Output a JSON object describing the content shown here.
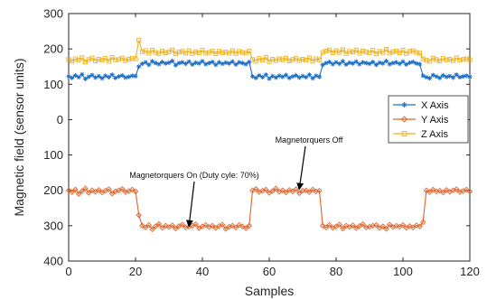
{
  "chart_data": {
    "type": "line",
    "xlabel": "Samples",
    "ylabel": "Magnetic field (sensor units)",
    "xlim": [
      0,
      120
    ],
    "ylim": [
      -400,
      300
    ],
    "x_ticks": [
      "0",
      "20",
      "40",
      "60",
      "80",
      "100",
      "120"
    ],
    "y_ticks": [
      {
        "value": 300,
        "label": "300"
      },
      {
        "value": 200,
        "label": "200"
      },
      {
        "value": 100,
        "label": "100"
      },
      {
        "value": 0,
        "label": "0"
      },
      {
        "value": -100,
        "label": "100"
      },
      {
        "value": -200,
        "label": "200"
      },
      {
        "value": -300,
        "label": "300"
      },
      {
        "value": -400,
        "label": "400"
      }
    ],
    "grid": false,
    "legend_position": "right",
    "series": [
      {
        "name": "X Axis",
        "color": "#1f6fc4",
        "marker": "star",
        "values": [
          122,
          118,
          125,
          120,
          128,
          115,
          121,
          126,
          119,
          123,
          117,
          124,
          120,
          127,
          118,
          122,
          125,
          119,
          121,
          124,
          123,
          150,
          158,
          162,
          155,
          165,
          160,
          157,
          163,
          159,
          161,
          166,
          154,
          160,
          162,
          158,
          164,
          156,
          161,
          159,
          165,
          157,
          160,
          163,
          155,
          162,
          158,
          161,
          159,
          164,
          156,
          162,
          160,
          157,
          163,
          122,
          118,
          125,
          120,
          127,
          116,
          123,
          119,
          124,
          121,
          126,
          118,
          122,
          125,
          119,
          123,
          120,
          127,
          117,
          124,
          121,
          155,
          160,
          163,
          157,
          162,
          158,
          165,
          156,
          161,
          159,
          164,
          157,
          162,
          160,
          158,
          163,
          155,
          161,
          159,
          166,
          157,
          160,
          162,
          158,
          164,
          156,
          161,
          163,
          159,
          157,
          124,
          120,
          117,
          126,
          122,
          118,
          125,
          121,
          123,
          119,
          127,
          120,
          122,
          124,
          121
        ]
      },
      {
        "name": "Y Axis",
        "color": "#e0632a",
        "marker": "diamond",
        "values": [
          -200,
          -205,
          -198,
          -210,
          -202,
          -195,
          -207,
          -200,
          -204,
          -199,
          -206,
          -201,
          -197,
          -209,
          -203,
          -200,
          -196,
          -205,
          -202,
          -198,
          -203,
          -270,
          -300,
          -305,
          -298,
          -310,
          -302,
          -295,
          -306,
          -300,
          -304,
          -299,
          -308,
          -301,
          -297,
          -305,
          -303,
          -300,
          -296,
          -307,
          -302,
          -298,
          -304,
          -300,
          -306,
          -301,
          -297,
          -309,
          -303,
          -300,
          -305,
          -298,
          -302,
          -307,
          -300,
          -200,
          -196,
          -205,
          -201,
          -198,
          -207,
          -202,
          -195,
          -204,
          -200,
          -206,
          -199,
          -203,
          -197,
          -208,
          -201,
          -200,
          -205,
          -198,
          -203,
          -201,
          -300,
          -305,
          -298,
          -306,
          -302,
          -297,
          -308,
          -300,
          -304,
          -299,
          -307,
          -301,
          -296,
          -305,
          -303,
          -300,
          -298,
          -306,
          -302,
          -309,
          -297,
          -304,
          -300,
          -303,
          -298,
          -306,
          -301,
          -305,
          -299,
          -302,
          -290,
          -200,
          -205,
          -198,
          -203,
          -201,
          -206,
          -199,
          -204,
          -200,
          -197,
          -205,
          -202,
          -198,
          -203
        ]
      },
      {
        "name": "Z Axis",
        "color": "#edb120",
        "marker": "square",
        "values": [
          170,
          165,
          172,
          168,
          175,
          163,
          170,
          174,
          166,
          171,
          168,
          173,
          165,
          176,
          169,
          170,
          174,
          167,
          171,
          173,
          172,
          225,
          192,
          195,
          188,
          196,
          190,
          187,
          194,
          189,
          192,
          197,
          186,
          191,
          193,
          188,
          195,
          187,
          192,
          189,
          196,
          188,
          190,
          194,
          186,
          193,
          189,
          191,
          188,
          195,
          187,
          193,
          190,
          188,
          194,
          170,
          165,
          173,
          168,
          176,
          164,
          171,
          167,
          172,
          169,
          174,
          166,
          170,
          173,
          167,
          171,
          168,
          175,
          165,
          172,
          169,
          190,
          194,
          197,
          189,
          195,
          190,
          198,
          187,
          193,
          191,
          197,
          188,
          194,
          192,
          189,
          196,
          186,
          193,
          190,
          199,
          188,
          192,
          194,
          189,
          196,
          187,
          193,
          195,
          190,
          188,
          172,
          168,
          165,
          174,
          170,
          166,
          173,
          169,
          171,
          167,
          175,
          168,
          170,
          172,
          169
        ]
      }
    ],
    "annotations": [
      {
        "text": "Magnetorquers On (Duty cyle: 70%)",
        "target_x": 36,
        "target_y": -310
      },
      {
        "text": "Magnetorquers Off",
        "target_x": 69,
        "target_y": -205
      }
    ]
  }
}
